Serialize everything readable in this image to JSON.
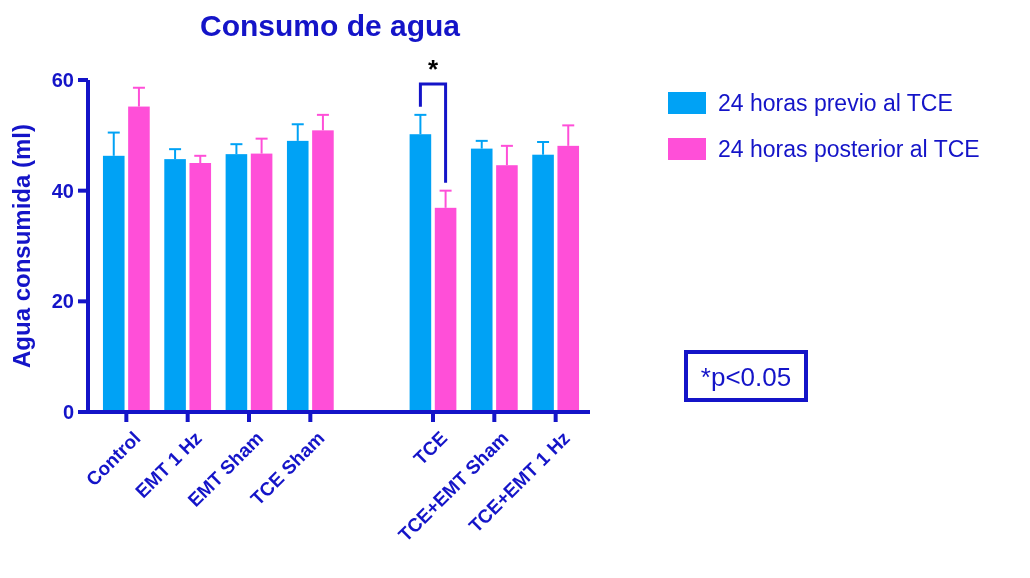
{
  "chart_data": {
    "type": "bar",
    "title": "Consumo de agua",
    "ylabel": "Agua consumida (ml)",
    "categories": [
      "Control",
      "EMT 1 Hz",
      "EMT Sham",
      "TCE Sham",
      null,
      "TCE",
      "TCE+EMT Sham",
      "TCE+EMT 1 Hz"
    ],
    "series": [
      {
        "name": "24 horas previo al TCE",
        "color": "#00a2f5",
        "values": [
          46.3,
          45.7,
          46.6,
          49.0,
          null,
          50.2,
          47.6,
          46.5
        ],
        "errors": [
          [
            46.3,
            50.5
          ],
          [
            45.7,
            47.5
          ],
          [
            46.6,
            48.4
          ],
          [
            49.0,
            52.0
          ],
          null,
          [
            50.2,
            53.7
          ],
          [
            47.6,
            49.0
          ],
          [
            46.5,
            48.8
          ]
        ]
      },
      {
        "name": "24 horas posterior al TCE",
        "color": "#ff4fd8",
        "values": [
          55.2,
          45.0,
          46.7,
          50.9,
          null,
          36.9,
          44.6,
          48.1
        ],
        "errors": [
          [
            55.2,
            58.6
          ],
          [
            45.0,
            46.3
          ],
          [
            46.7,
            49.4
          ],
          [
            50.9,
            53.7
          ],
          null,
          [
            36.9,
            40.0
          ],
          [
            44.6,
            48.1
          ],
          [
            48.1,
            51.8
          ]
        ]
      }
    ],
    "ylim": [
      0,
      60
    ],
    "yticks": [
      0,
      20,
      40,
      60
    ],
    "grid": false,
    "legend": "right",
    "annotations": [
      "*",
      "*p<0.05"
    ]
  }
}
